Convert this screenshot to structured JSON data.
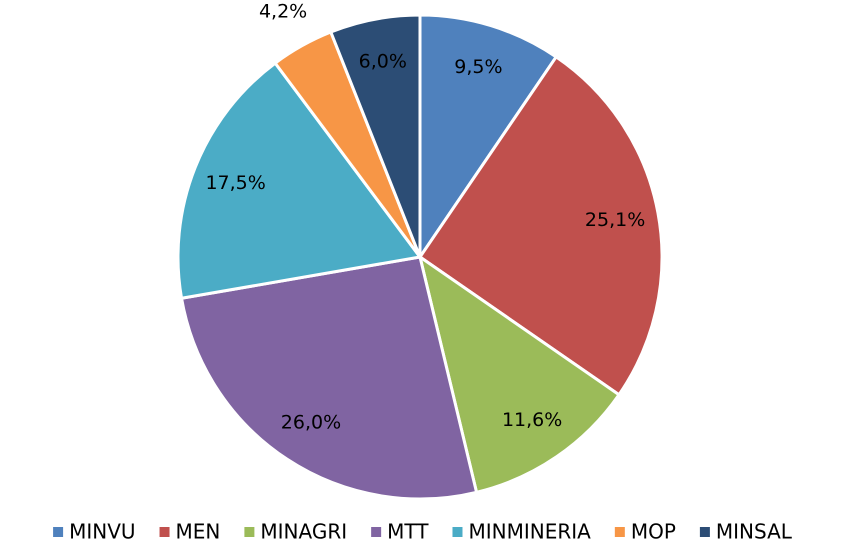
{
  "chart_data": {
    "type": "pie",
    "categories": [
      "MINVU",
      "MEN",
      "MINAGRI",
      "MTT",
      "MINMINERIA",
      "MOP",
      "MINSAL"
    ],
    "values": [
      9.5,
      25.1,
      11.6,
      26.0,
      17.5,
      4.2,
      6.0
    ],
    "value_labels": [
      "9,5%",
      "25,1%",
      "11,6%",
      "26,0%",
      "17,5%",
      "4,2%",
      "6,0%"
    ],
    "colors": [
      "#4f81bd",
      "#c0504d",
      "#9bbb59",
      "#8064a2",
      "#4bacc6",
      "#f79646",
      "#2c4d75"
    ],
    "legend": "bottom"
  }
}
